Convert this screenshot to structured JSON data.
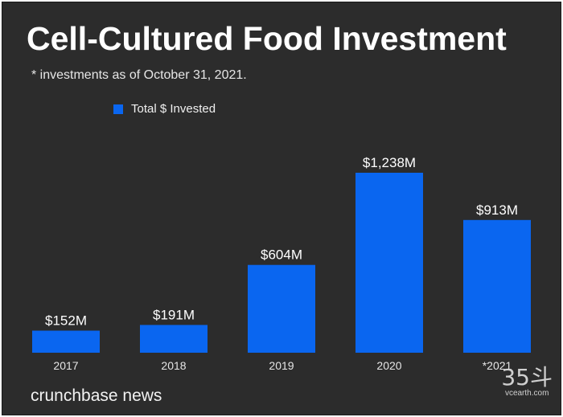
{
  "title": "Cell-Cultured Food Investment",
  "subtitle": "* investments as of October 31, 2021.",
  "brand": "crunchbase news",
  "watermark": {
    "mark": "35斗",
    "url": "vcearth.com"
  },
  "colors": {
    "background": "#2c2c2c",
    "bar": "#0a66f0",
    "text": "#ffffff"
  },
  "chart_data": {
    "type": "bar",
    "categories": [
      "2017",
      "2018",
      "2019",
      "2020",
      "*2021"
    ],
    "series": [
      {
        "name": "Total $ Invested",
        "values": [
          152,
          191,
          604,
          1238,
          913
        ]
      }
    ],
    "data_labels": [
      "$152M",
      "$191M",
      "$604M",
      "$1,238M",
      "$913M"
    ],
    "ylim": [
      0,
      1238
    ],
    "grid": false,
    "legend_position": "top-left"
  }
}
